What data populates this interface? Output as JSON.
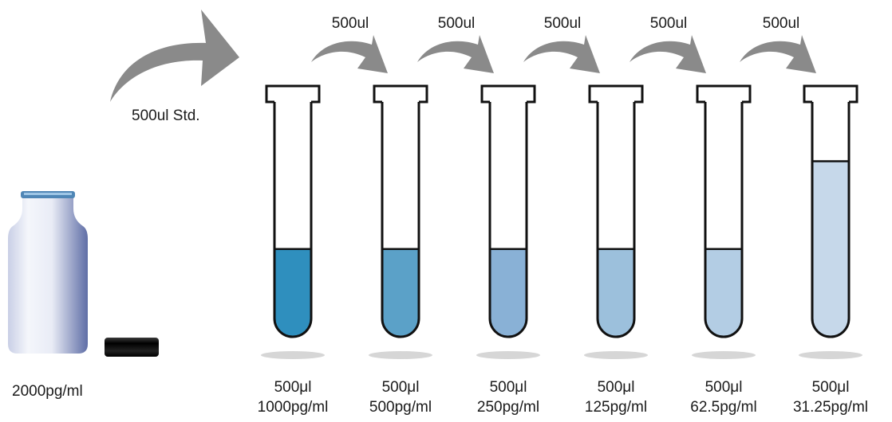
{
  "stock": {
    "concentration_label": "2000pg/ml",
    "transfer_label": "500ul  Std."
  },
  "transfers": [
    "500ul",
    "500ul",
    "500ul",
    "500ul",
    "500ul"
  ],
  "tubes": [
    {
      "volume": "500μl",
      "concentration": "1000pg/ml",
      "liquid_color": "#2f8fbe",
      "fill_fraction": 0.37
    },
    {
      "volume": "500μl",
      "concentration": "500pg/ml",
      "liquid_color": "#5ba1c8",
      "fill_fraction": 0.37
    },
    {
      "volume": "500μl",
      "concentration": "250pg/ml",
      "liquid_color": "#89b1d6",
      "fill_fraction": 0.37
    },
    {
      "volume": "500μl",
      "concentration": "125pg/ml",
      "liquid_color": "#9cc0dc",
      "fill_fraction": 0.37
    },
    {
      "volume": "500μl",
      "concentration": "62.5pg/ml",
      "liquid_color": "#b3cde4",
      "fill_fraction": 0.37
    },
    {
      "volume": "500μl",
      "concentration": "31.25pg/ml",
      "liquid_color": "#c6d8ea",
      "fill_fraction": 0.74
    }
  ],
  "colors": {
    "arrow": "#8a8a8a",
    "outline": "#111111",
    "shadow": "#d6d6d6",
    "vial_cap": "#111111"
  }
}
